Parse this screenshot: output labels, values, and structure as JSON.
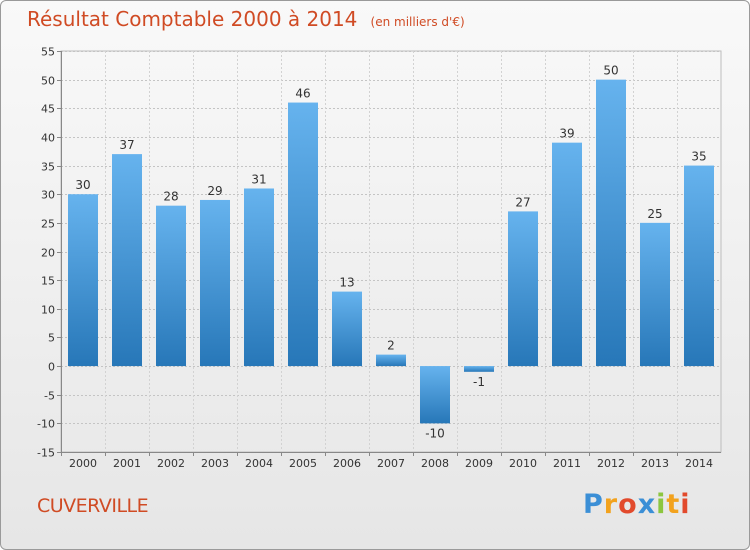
{
  "chart_data": {
    "type": "bar",
    "title": "Résultat Comptable 2000 à 2014",
    "subtitle": "(en milliers d'€)",
    "categories": [
      "2000",
      "2001",
      "2002",
      "2003",
      "2004",
      "2005",
      "2006",
      "2007",
      "2008",
      "2009",
      "2010",
      "2011",
      "2012",
      "2013",
      "2014"
    ],
    "values": [
      30,
      37,
      28,
      29,
      31,
      46,
      13,
      2,
      -10,
      -1,
      27,
      39,
      50,
      25,
      35
    ],
    "ylim": [
      -15,
      55
    ],
    "yticks": [
      -15,
      -10,
      -5,
      0,
      5,
      10,
      15,
      20,
      25,
      30,
      35,
      40,
      45,
      50,
      55
    ],
    "grid": true,
    "bar_color_top": "#66b3ee",
    "bar_color_bottom": "#2777b8"
  },
  "commune": "CUVERVILLE",
  "logo": {
    "letters": [
      "P",
      "r",
      "o",
      "x",
      "i",
      "t",
      "i"
    ],
    "colors": [
      "#3b8fd6",
      "#f2a21d",
      "#e24a2c",
      "#3b8fd6",
      "#8cc63f",
      "#f2a21d",
      "#e24a2c"
    ]
  }
}
